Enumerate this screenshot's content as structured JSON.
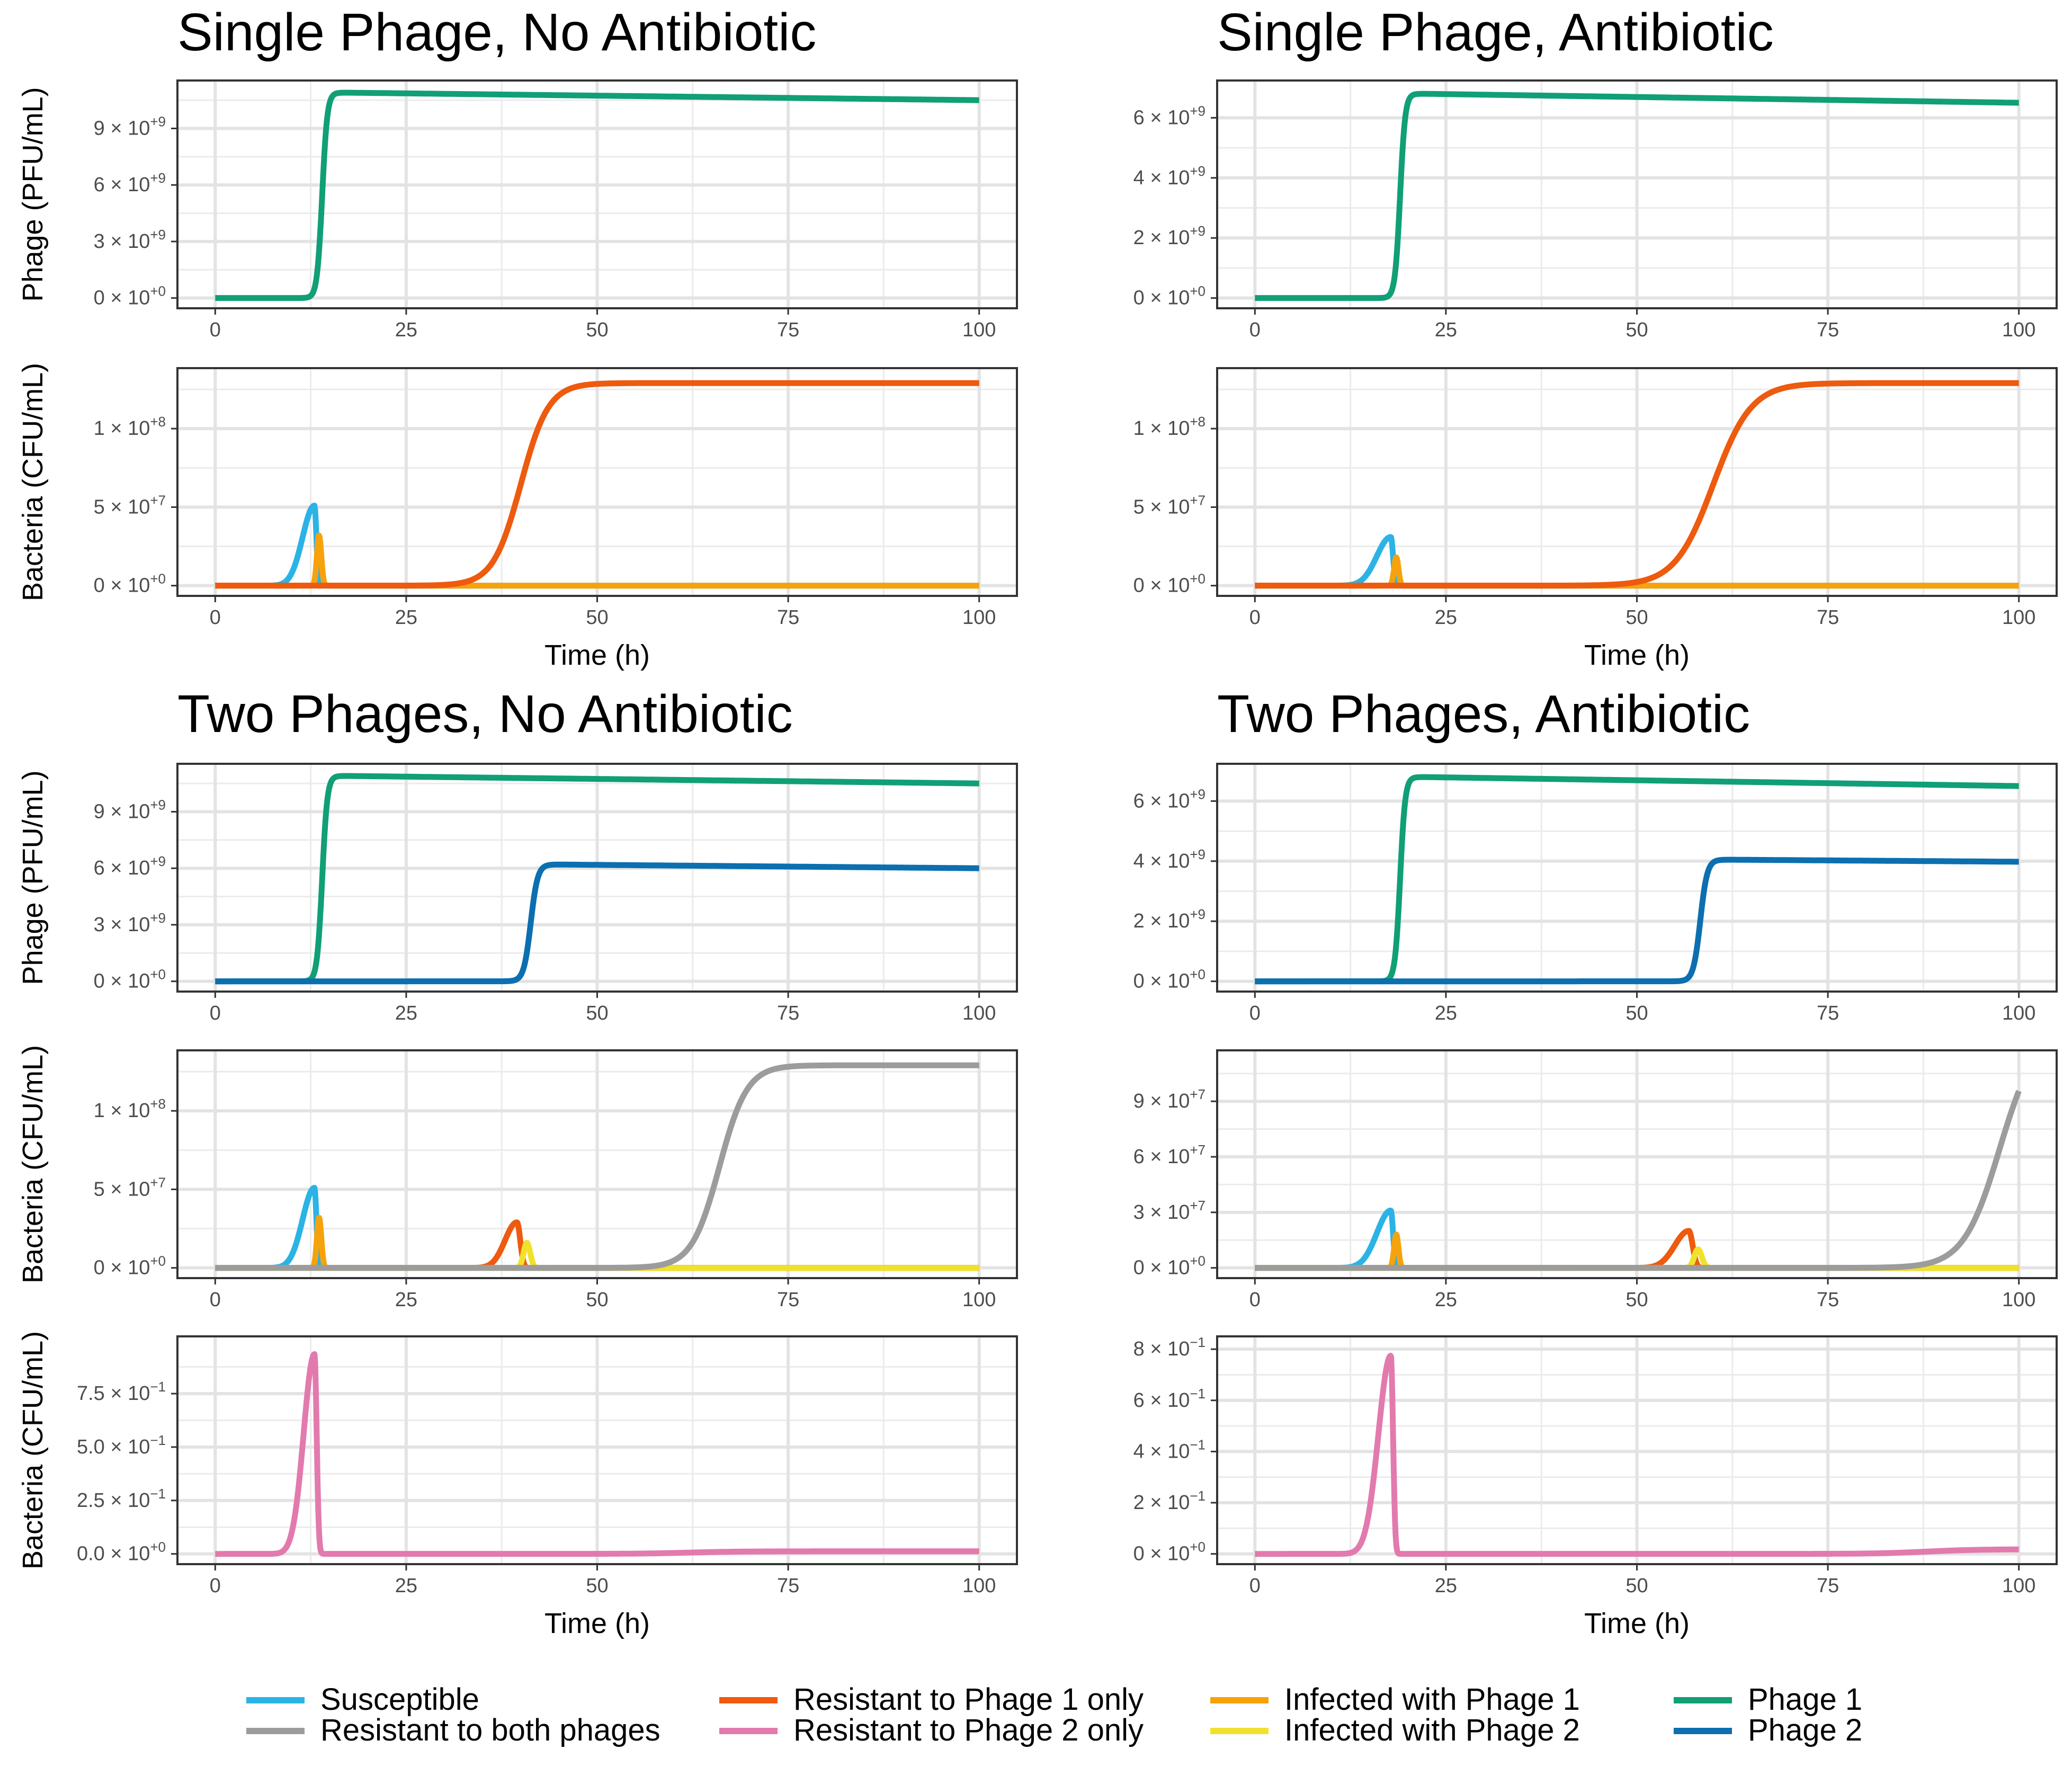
{
  "colors": {
    "susceptible": "#2bb3e6",
    "resist_both": "#9c9c9c",
    "resist_p1": "#ee5a0e",
    "resist_p2": "#e27aad",
    "infected_p1": "#f6a20c",
    "infected_p2": "#f1e12c",
    "phage1": "#109f76",
    "phage2": "#0b6fb0"
  },
  "legend": [
    {
      "key": "susceptible",
      "label": "Susceptible"
    },
    {
      "key": "resist_both",
      "label": "Resistant to both phages"
    },
    {
      "key": "resist_p1",
      "label": "Resistant to Phage 1 only"
    },
    {
      "key": "resist_p2",
      "label": "Resistant to Phage 2 only"
    },
    {
      "key": "infected_p1",
      "label": "Infected with Phage 1"
    },
    {
      "key": "infected_p2",
      "label": "Infected with Phage 2"
    },
    {
      "key": "phage1",
      "label": "Phage 1"
    },
    {
      "key": "phage2",
      "label": "Phage 2"
    }
  ],
  "chart_data": [
    {
      "title": "Single Phage, No Antibiotic",
      "panels": [
        {
          "type": "line",
          "ylabel": "Phage (PFU/mL)",
          "xlabel": "",
          "xlim": [
            0,
            100
          ],
          "ylim": [
            0,
            11000000000.0
          ],
          "xticks": [
            "0",
            "25",
            "50",
            "75",
            "100"
          ],
          "yticks": [
            {
              "v": 0,
              "m": "0",
              "e": "+0"
            },
            {
              "v": 3000000000.0,
              "m": "3",
              "e": "+9"
            },
            {
              "v": 6000000000.0,
              "m": "6",
              "e": "+9"
            },
            {
              "v": 9000000000.0,
              "m": "9",
              "e": "+9"
            }
          ],
          "series": [
            {
              "key": "phage1",
              "name": "Phage 1",
              "curve": "rise",
              "start": 0,
              "end": 10900000000.0,
              "mid": 14,
              "rate": 3,
              "decay_to": 10500000000.0
            }
          ]
        },
        {
          "type": "line",
          "ylabel": "Bacteria (CFU/mL)",
          "xlabel": "Time (h)",
          "xlim": [
            0,
            100
          ],
          "ylim": [
            0,
            132000000.0
          ],
          "xticks": [
            "0",
            "25",
            "50",
            "75",
            "100"
          ],
          "yticks": [
            {
              "v": 0,
              "m": "0",
              "e": "+0"
            },
            {
              "v": 50000000.0,
              "m": "5",
              "e": "+7"
            },
            {
              "v": 100000000.0,
              "m": "1",
              "e": "+8"
            }
          ],
          "series": [
            {
              "key": "susceptible",
              "name": "Susceptible",
              "curve": "peak",
              "x0": 13,
              "height": 51000000.0,
              "up": 2.2,
              "down": 0.35
            },
            {
              "key": "infected_p1",
              "name": "Infected with Phage 1",
              "curve": "peak",
              "x0": 13.6,
              "height": 32000000.0,
              "up": 0.4,
              "down": 0.4
            },
            {
              "key": "resist_p1",
              "name": "Resistant to Phage 1 only",
              "curve": "sigmoid",
              "mid": 40,
              "height": 129000000.0,
              "rate": 0.55
            }
          ]
        }
      ]
    },
    {
      "title": "Single Phage, Antibiotic",
      "panels": [
        {
          "type": "line",
          "ylabel": "",
          "xlabel": "",
          "xlim": [
            0,
            100
          ],
          "ylim": [
            0,
            6900000000.0
          ],
          "xticks": [
            "0",
            "25",
            "50",
            "75",
            "100"
          ],
          "yticks": [
            {
              "v": 0,
              "m": "0",
              "e": "+0"
            },
            {
              "v": 2000000000.0,
              "m": "2",
              "e": "+9"
            },
            {
              "v": 4000000000.0,
              "m": "4",
              "e": "+9"
            },
            {
              "v": 6000000000.0,
              "m": "6",
              "e": "+9"
            }
          ],
          "series": [
            {
              "key": "phage1",
              "name": "Phage 1",
              "curve": "rise",
              "start": 0,
              "end": 6800000000.0,
              "mid": 19,
              "rate": 3,
              "decay_to": 6500000000.0
            }
          ]
        },
        {
          "type": "line",
          "ylabel": "",
          "xlabel": "Time (h)",
          "xlim": [
            0,
            100
          ],
          "ylim": [
            0,
            132000000.0
          ],
          "xticks": [
            "0",
            "25",
            "50",
            "75",
            "100"
          ],
          "yticks": [
            {
              "v": 0,
              "m": "0",
              "e": "+0"
            },
            {
              "v": 50000000.0,
              "m": "5",
              "e": "+7"
            },
            {
              "v": 100000000.0,
              "m": "1",
              "e": "+8"
            }
          ],
          "series": [
            {
              "key": "susceptible",
              "name": "Susceptible",
              "curve": "peak",
              "x0": 17.8,
              "height": 31000000.0,
              "up": 2.6,
              "down": 0.4
            },
            {
              "key": "infected_p1",
              "name": "Infected with Phage 1",
              "curve": "peak",
              "x0": 18.5,
              "height": 18000000.0,
              "up": 0.4,
              "down": 0.4
            },
            {
              "key": "resist_p1",
              "name": "Resistant to Phage 1 only",
              "curve": "sigmoid",
              "mid": 60,
              "height": 129000000.0,
              "rate": 0.4
            }
          ]
        }
      ]
    },
    {
      "title": "Two Phages, No Antibiotic",
      "panels": [
        {
          "type": "line",
          "ylabel": "Phage (PFU/mL)",
          "xlabel": "",
          "xlim": [
            0,
            100
          ],
          "ylim": [
            0,
            11000000000.0
          ],
          "xticks": [
            "0",
            "25",
            "50",
            "75",
            "100"
          ],
          "yticks": [
            {
              "v": 0,
              "m": "0",
              "e": "+0"
            },
            {
              "v": 3000000000.0,
              "m": "3",
              "e": "+9"
            },
            {
              "v": 6000000000.0,
              "m": "6",
              "e": "+9"
            },
            {
              "v": 9000000000.0,
              "m": "9",
              "e": "+9"
            }
          ],
          "series": [
            {
              "key": "phage1",
              "name": "Phage 1",
              "curve": "rise",
              "start": 0,
              "end": 10900000000.0,
              "mid": 14,
              "rate": 3,
              "decay_to": 10500000000.0
            },
            {
              "key": "phage2",
              "name": "Phage 2",
              "curve": "rise",
              "start": 0,
              "end": 6200000000.0,
              "mid": 41.3,
              "rate": 2.2,
              "decay_to": 6000000000.0
            }
          ]
        },
        {
          "type": "line",
          "ylabel": "Bacteria (CFU/mL)",
          "xlabel": "",
          "xlim": [
            0,
            100
          ],
          "ylim": [
            0,
            132000000.0
          ],
          "xticks": [
            "0",
            "25",
            "50",
            "75",
            "100"
          ],
          "yticks": [
            {
              "v": 0,
              "m": "0",
              "e": "+0"
            },
            {
              "v": 50000000.0,
              "m": "5",
              "e": "+7"
            },
            {
              "v": 100000000.0,
              "m": "1",
              "e": "+8"
            }
          ],
          "series": [
            {
              "key": "susceptible",
              "name": "Susceptible",
              "curve": "peak",
              "x0": 13,
              "height": 51000000.0,
              "up": 2.2,
              "down": 0.35
            },
            {
              "key": "infected_p1",
              "name": "Infected with Phage 1",
              "curve": "peak",
              "x0": 13.6,
              "height": 32000000.0,
              "up": 0.4,
              "down": 0.4
            },
            {
              "key": "resist_p1",
              "name": "Resistant to Phage 1 only",
              "curve": "peak",
              "x0": 39.5,
              "height": 29000000.0,
              "up": 2.2,
              "down": 0.6
            },
            {
              "key": "infected_p2",
              "name": "Infected with Phage 2",
              "curve": "peak",
              "x0": 40.8,
              "height": 16000000.0,
              "up": 0.6,
              "down": 0.6
            },
            {
              "key": "resist_both",
              "name": "Resistant to both phages",
              "curve": "sigmoid",
              "mid": 66,
              "height": 129000000.0,
              "rate": 0.55
            }
          ]
        },
        {
          "type": "line",
          "ylabel": "Bacteria (CFU/mL)",
          "xlabel": "Time (h)",
          "xlim": [
            0,
            100
          ],
          "ylim": [
            0,
            0.97
          ],
          "xticks": [
            "0",
            "25",
            "50",
            "75",
            "100"
          ],
          "yticks": [
            {
              "v": 0,
              "m": "0.0",
              "e": "+0"
            },
            {
              "v": 0.25,
              "m": "2.5",
              "e": "−1"
            },
            {
              "v": 0.5,
              "m": "5.0",
              "e": "−1"
            },
            {
              "v": 0.75,
              "m": "7.5",
              "e": "−1"
            }
          ],
          "series": [
            {
              "key": "resist_p2",
              "name": "Resistant to Phage 2 only",
              "curve": "spike",
              "x0": 13,
              "height": 0.935,
              "up": 2.0,
              "down": 0.4,
              "tail": 0.012,
              "tail_start": 62
            }
          ]
        }
      ]
    },
    {
      "title": "Two Phages, Antibiotic",
      "panels": [
        {
          "type": "line",
          "ylabel": "",
          "xlabel": "",
          "xlim": [
            0,
            100
          ],
          "ylim": [
            0,
            6900000000.0
          ],
          "xticks": [
            "0",
            "25",
            "50",
            "75",
            "100"
          ],
          "yticks": [
            {
              "v": 0,
              "m": "0",
              "e": "+0"
            },
            {
              "v": 2000000000.0,
              "m": "2",
              "e": "+9"
            },
            {
              "v": 4000000000.0,
              "m": "4",
              "e": "+9"
            },
            {
              "v": 6000000000.0,
              "m": "6",
              "e": "+9"
            }
          ],
          "series": [
            {
              "key": "phage1",
              "name": "Phage 1",
              "curve": "rise",
              "start": 0,
              "end": 6800000000.0,
              "mid": 19,
              "rate": 3,
              "decay_to": 6500000000.0
            },
            {
              "key": "phage2",
              "name": "Phage 2",
              "curve": "rise",
              "start": 0,
              "end": 4050000000.0,
              "mid": 58.3,
              "rate": 2.2,
              "decay_to": 3980000000.0
            }
          ]
        },
        {
          "type": "line",
          "ylabel": "",
          "xlabel": "",
          "xlim": [
            0,
            100
          ],
          "ylim": [
            0,
            112000000.0
          ],
          "xticks": [
            "0",
            "25",
            "50",
            "75",
            "100"
          ],
          "yticks": [
            {
              "v": 0,
              "m": "0",
              "e": "+0"
            },
            {
              "v": 30000000.0,
              "m": "3",
              "e": "+7"
            },
            {
              "v": 60000000.0,
              "m": "6",
              "e": "+7"
            },
            {
              "v": 90000000.0,
              "m": "9",
              "e": "+7"
            }
          ],
          "series": [
            {
              "key": "susceptible",
              "name": "Susceptible",
              "curve": "peak",
              "x0": 17.8,
              "height": 31000000.0,
              "up": 2.6,
              "down": 0.4
            },
            {
              "key": "infected_p1",
              "name": "Infected with Phage 1",
              "curve": "peak",
              "x0": 18.5,
              "height": 18000000.0,
              "up": 0.4,
              "down": 0.4
            },
            {
              "key": "resist_p1",
              "name": "Resistant to Phage 1 only",
              "curve": "peak",
              "x0": 56.8,
              "height": 20000000.0,
              "up": 2.6,
              "down": 0.7
            },
            {
              "key": "infected_p2",
              "name": "Infected with Phage 2",
              "curve": "peak",
              "x0": 58,
              "height": 10000000.0,
              "up": 0.7,
              "down": 0.7
            },
            {
              "key": "resist_both",
              "name": "Resistant to both phages",
              "curve": "sigmoid",
              "mid": 97.5,
              "height": 129000000.0,
              "rate": 0.42
            }
          ]
        },
        {
          "type": "line",
          "ylabel": "",
          "xlabel": "Time (h)",
          "xlim": [
            0,
            100
          ],
          "ylim": [
            0,
            0.81
          ],
          "xticks": [
            "0",
            "25",
            "50",
            "75",
            "100"
          ],
          "yticks": [
            {
              "v": 0,
              "m": "0",
              "e": "+0"
            },
            {
              "v": 0.2,
              "m": "2",
              "e": "−1"
            },
            {
              "v": 0.4,
              "m": "4",
              "e": "−1"
            },
            {
              "v": 0.6,
              "m": "6",
              "e": "−1"
            },
            {
              "v": 0.8,
              "m": "8",
              "e": "−1"
            }
          ],
          "series": [
            {
              "key": "resist_p2",
              "name": "Resistant to Phage 2 only",
              "curve": "spike",
              "x0": 17.8,
              "height": 0.775,
              "up": 2.3,
              "down": 0.4,
              "tail": 0.018,
              "tail_start": 88
            }
          ]
        }
      ]
    }
  ]
}
